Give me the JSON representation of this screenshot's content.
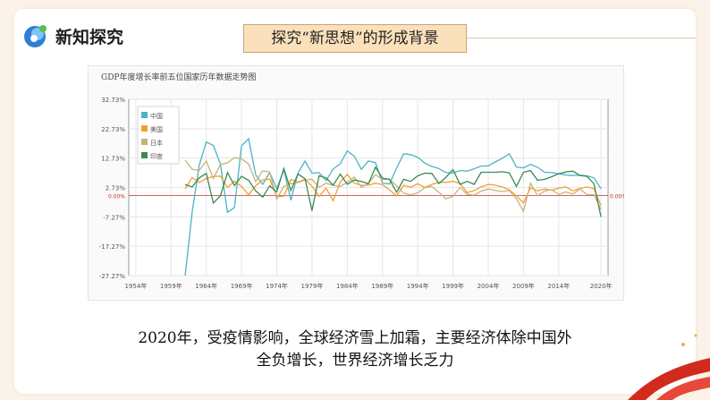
{
  "header": {
    "title": "新知探究",
    "logo_icon": "new-knowledge-logo-icon"
  },
  "section_title": "探究“新思想”的形成背景",
  "chart_data": {
    "type": "line",
    "title": "GDP年度增长率前五位国家历年数据走势图",
    "xlabel": "",
    "ylabel": "",
    "x_tick_labels": [
      "1954年",
      "1959年",
      "1964年",
      "1969年",
      "1974年",
      "1979年",
      "1984年",
      "1989年",
      "1994年",
      "1999年",
      "2004年",
      "2009年",
      "2014年",
      "2020年"
    ],
    "x_ticks": [
      1954,
      1959,
      1964,
      1969,
      1974,
      1979,
      1984,
      1989,
      1994,
      1999,
      2004,
      2009,
      2014,
      2020
    ],
    "y_tick_labels": [
      "32.73%",
      "22.73%",
      "12.73%",
      "2.73%",
      "-7.27%",
      "-17.27%",
      "-27.27%"
    ],
    "y_ticks": [
      32.73,
      22.73,
      12.73,
      2.73,
      -7.27,
      -17.27,
      -27.27
    ],
    "xlim": [
      1953,
      2021
    ],
    "ylim": [
      -27.27,
      32.73
    ],
    "zero_line_label_left": "0.00%",
    "zero_line_label_right": "0.00%",
    "grid": true,
    "legend_position": "top-left",
    "series": [
      {
        "name": "中国",
        "color": "#4ab3c6",
        "x": [
          1961,
          1962,
          1963,
          1964,
          1965,
          1966,
          1967,
          1968,
          1969,
          1970,
          1971,
          1972,
          1973,
          1974,
          1975,
          1976,
          1977,
          1978,
          1979,
          1980,
          1981,
          1982,
          1983,
          1984,
          1985,
          1986,
          1987,
          1988,
          1989,
          1990,
          1991,
          1992,
          1993,
          1994,
          1995,
          1996,
          1997,
          1998,
          1999,
          2000,
          2001,
          2002,
          2003,
          2004,
          2005,
          2006,
          2007,
          2008,
          2009,
          2010,
          2011,
          2012,
          2013,
          2014,
          2015,
          2016,
          2017,
          2018,
          2019,
          2020
        ],
        "values": [
          -27.3,
          -5.6,
          10.3,
          18.2,
          17.0,
          10.7,
          -5.7,
          -4.1,
          16.9,
          19.3,
          7.1,
          3.8,
          7.8,
          2.3,
          8.7,
          -1.6,
          7.6,
          11.7,
          7.6,
          7.8,
          5.1,
          9.0,
          10.8,
          15.2,
          13.4,
          8.9,
          11.7,
          11.2,
          4.2,
          3.9,
          9.3,
          14.2,
          13.9,
          13.0,
          11.0,
          9.9,
          9.2,
          7.8,
          7.7,
          8.5,
          8.3,
          9.1,
          10.0,
          10.1,
          11.4,
          12.7,
          14.2,
          9.7,
          9.4,
          10.6,
          9.6,
          7.9,
          7.8,
          7.4,
          7.0,
          6.8,
          6.9,
          6.7,
          6.0,
          2.3
        ]
      },
      {
        "name": "美国",
        "color": "#f0a030",
        "x": [
          1961,
          1962,
          1963,
          1964,
          1965,
          1966,
          1967,
          1968,
          1969,
          1970,
          1971,
          1972,
          1973,
          1974,
          1975,
          1976,
          1977,
          1978,
          1979,
          1980,
          1981,
          1982,
          1983,
          1984,
          1985,
          1986,
          1987,
          1988,
          1989,
          1990,
          1991,
          1992,
          1993,
          1994,
          1995,
          1996,
          1997,
          1998,
          1999,
          2000,
          2001,
          2002,
          2003,
          2004,
          2005,
          2006,
          2007,
          2008,
          2009,
          2010,
          2011,
          2012,
          2013,
          2014,
          2015,
          2016,
          2017,
          2018,
          2019,
          2020
        ],
        "values": [
          2.3,
          6.1,
          4.4,
          5.8,
          6.5,
          6.6,
          2.7,
          4.9,
          3.1,
          0.2,
          3.3,
          5.3,
          5.6,
          -0.5,
          -0.2,
          5.4,
          4.6,
          5.5,
          3.2,
          -0.3,
          2.5,
          -1.8,
          4.6,
          7.2,
          4.2,
          3.5,
          3.5,
          4.2,
          3.7,
          1.9,
          -0.1,
          3.5,
          2.8,
          4.0,
          2.7,
          3.8,
          4.4,
          4.5,
          4.8,
          4.1,
          1.0,
          1.7,
          2.9,
          3.8,
          3.5,
          2.9,
          1.9,
          -0.1,
          -2.5,
          2.6,
          1.6,
          2.2,
          1.8,
          2.5,
          2.9,
          1.6,
          2.4,
          2.9,
          2.3,
          -3.4
        ]
      },
      {
        "name": "日本",
        "color": "#c9b27a",
        "x": [
          1961,
          1962,
          1963,
          1964,
          1965,
          1966,
          1967,
          1968,
          1969,
          1970,
          1971,
          1972,
          1973,
          1974,
          1975,
          1976,
          1977,
          1978,
          1979,
          1980,
          1981,
          1982,
          1983,
          1984,
          1985,
          1986,
          1987,
          1988,
          1989,
          1990,
          1991,
          1992,
          1993,
          1994,
          1995,
          1996,
          1997,
          1998,
          1999,
          2000,
          2001,
          2002,
          2003,
          2004,
          2005,
          2006,
          2007,
          2008,
          2009,
          2010,
          2011,
          2012,
          2013,
          2014,
          2015,
          2016,
          2017,
          2018,
          2019,
          2020
        ],
        "values": [
          12.0,
          8.9,
          8.5,
          11.7,
          5.8,
          10.6,
          11.1,
          12.9,
          12.5,
          10.7,
          4.7,
          8.4,
          8.0,
          -1.2,
          3.1,
          4.0,
          4.4,
          5.3,
          5.5,
          2.8,
          4.2,
          3.4,
          3.1,
          4.5,
          6.3,
          2.8,
          4.1,
          7.1,
          5.4,
          5.6,
          3.3,
          0.8,
          0.2,
          0.9,
          2.7,
          3.1,
          1.1,
          -1.1,
          -0.3,
          2.8,
          0.4,
          0.1,
          1.5,
          2.2,
          1.7,
          1.4,
          1.7,
          -1.1,
          -5.4,
          4.2,
          -0.1,
          1.5,
          2.0,
          0.4,
          1.2,
          0.5,
          2.2,
          0.3,
          0.3,
          -4.8
        ]
      },
      {
        "name": "印度",
        "color": "#3b8a55",
        "x": [
          1961,
          1962,
          1963,
          1964,
          1965,
          1966,
          1967,
          1968,
          1969,
          1970,
          1971,
          1972,
          1973,
          1974,
          1975,
          1976,
          1977,
          1978,
          1979,
          1980,
          1981,
          1982,
          1983,
          1984,
          1985,
          1986,
          1987,
          1988,
          1989,
          1990,
          1991,
          1992,
          1993,
          1994,
          1995,
          1996,
          1997,
          1998,
          1999,
          2000,
          2001,
          2002,
          2003,
          2004,
          2005,
          2006,
          2007,
          2008,
          2009,
          2010,
          2011,
          2012,
          2013,
          2014,
          2015,
          2016,
          2017,
          2018,
          2019,
          2020
        ],
        "values": [
          3.7,
          2.9,
          6.0,
          7.5,
          -2.6,
          -0.1,
          7.8,
          3.4,
          6.5,
          5.2,
          1.6,
          -0.6,
          3.3,
          1.2,
          9.2,
          1.7,
          7.3,
          5.7,
          -5.2,
          6.7,
          6.0,
          3.5,
          7.3,
          3.8,
          5.3,
          4.8,
          4.0,
          9.6,
          5.9,
          5.5,
          1.1,
          5.5,
          4.8,
          6.7,
          7.6,
          7.5,
          4.1,
          6.2,
          8.8,
          3.8,
          4.8,
          3.8,
          7.9,
          7.9,
          7.9,
          8.1,
          7.7,
          3.1,
          7.9,
          8.5,
          5.2,
          5.5,
          6.4,
          7.4,
          8.0,
          8.3,
          6.8,
          6.5,
          4.0,
          -7.3
        ]
      }
    ]
  },
  "caption": {
    "line1": "2020年，受疫情影响，全球经济雪上加霜，主要经济体除中国外",
    "line2": "全负增长，世界经济增长乏力"
  }
}
